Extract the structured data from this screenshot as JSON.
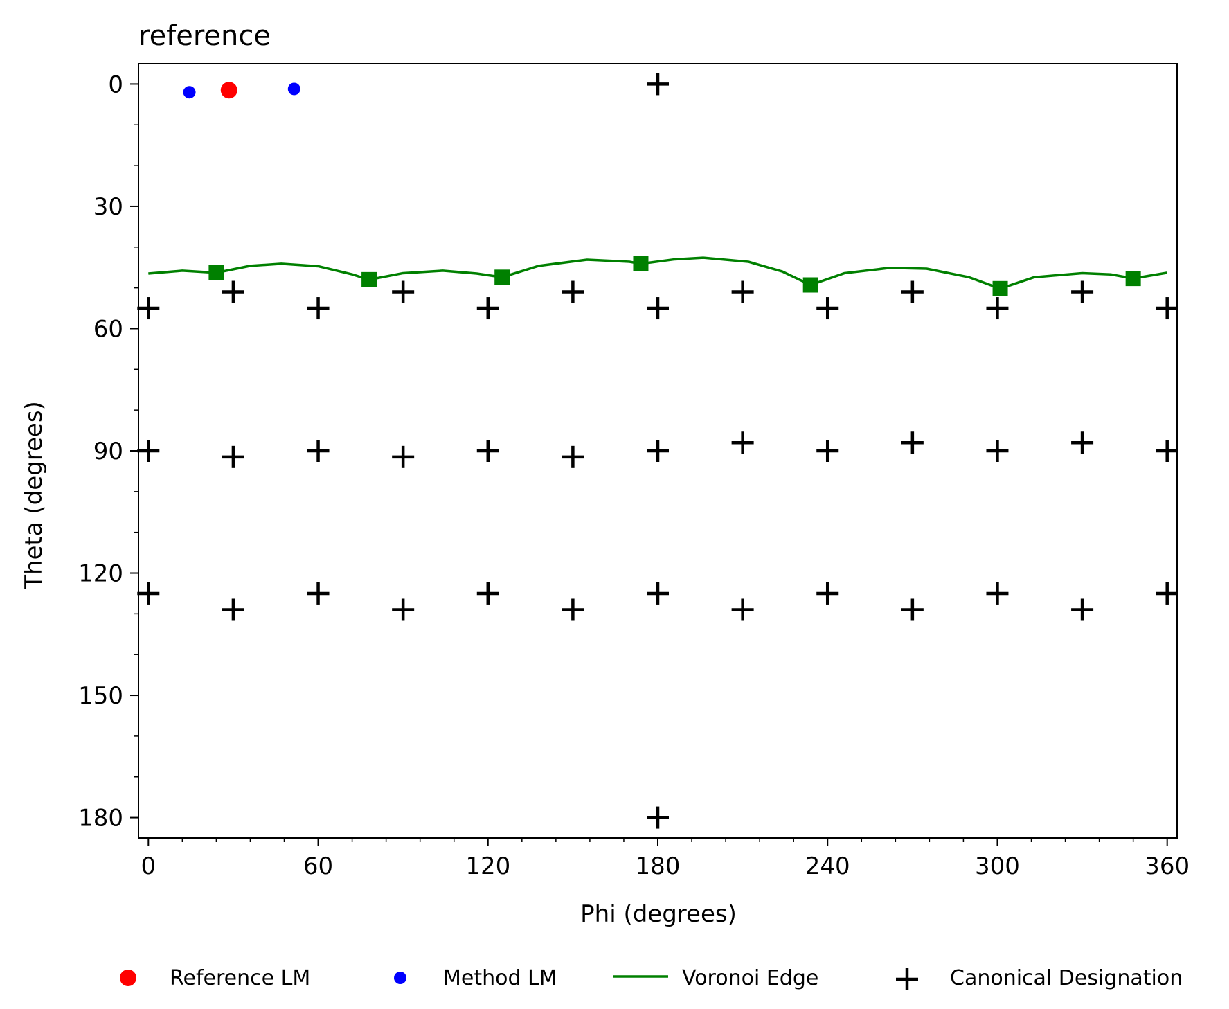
{
  "chart_data": {
    "type": "scatter",
    "title": "reference",
    "xlabel": "Phi (degrees)",
    "ylabel": "Theta (degrees)",
    "xlim": [
      -3.5,
      363.5
    ],
    "ylim": [
      185,
      -5
    ],
    "y_inverted": true,
    "grid": false,
    "xticks": [
      0,
      60,
      120,
      180,
      240,
      300,
      360
    ],
    "xtick_labels": [
      "0",
      "60",
      "120",
      "180",
      "240",
      "300",
      "360"
    ],
    "yticks": [
      0,
      30,
      60,
      90,
      120,
      150,
      180
    ],
    "ytick_labels": [
      "0",
      "30",
      "60",
      "90",
      "120",
      "150",
      "180"
    ],
    "x_minor_step": 12,
    "y_minor_step": 10,
    "legend_position": "bottom-center",
    "series": [
      {
        "name": "Reference LM",
        "kind": "marker",
        "marker": "circle",
        "color": "#ff0000",
        "points": [
          [
            28.5,
            1.5
          ]
        ]
      },
      {
        "name": "Method LM",
        "kind": "marker",
        "marker": "circle",
        "color": "#0000ff",
        "points": [
          [
            14.5,
            2.0
          ],
          [
            51.5,
            1.2
          ]
        ]
      },
      {
        "name": "Voronoi Edge",
        "kind": "line",
        "color": "#008000",
        "line_points": [
          [
            0,
            46.5
          ],
          [
            12,
            45.8
          ],
          [
            24,
            46.3
          ],
          [
            36,
            44.6
          ],
          [
            47,
            44.1
          ],
          [
            60,
            44.7
          ],
          [
            72,
            46.7
          ],
          [
            78,
            48.0
          ],
          [
            90,
            46.4
          ],
          [
            104,
            45.8
          ],
          [
            116,
            46.5
          ],
          [
            125,
            47.4
          ],
          [
            138,
            44.6
          ],
          [
            155,
            43.1
          ],
          [
            170,
            43.6
          ],
          [
            174,
            44.1
          ],
          [
            186,
            43.0
          ],
          [
            196,
            42.6
          ],
          [
            212,
            43.6
          ],
          [
            224,
            46.0
          ],
          [
            234,
            49.3
          ],
          [
            246,
            46.4
          ],
          [
            262,
            45.1
          ],
          [
            275,
            45.3
          ],
          [
            290,
            47.4
          ],
          [
            301,
            50.2
          ],
          [
            313,
            47.4
          ],
          [
            330,
            46.4
          ],
          [
            340,
            46.7
          ],
          [
            348,
            47.7
          ],
          [
            360,
            46.3
          ]
        ],
        "vertex_points": [
          [
            24,
            46.3
          ],
          [
            78,
            48.0
          ],
          [
            125,
            47.4
          ],
          [
            174,
            44.1
          ],
          [
            234,
            49.3
          ],
          [
            301,
            50.2
          ],
          [
            348,
            47.7
          ]
        ]
      },
      {
        "name": "Canonical Designation",
        "kind": "marker",
        "marker": "plus",
        "color": "#000000",
        "points": [
          [
            180,
            0
          ],
          [
            0,
            55
          ],
          [
            60,
            55
          ],
          [
            120,
            55
          ],
          [
            180,
            55
          ],
          [
            240,
            55
          ],
          [
            300,
            55
          ],
          [
            360,
            55
          ],
          [
            30,
            51
          ],
          [
            90,
            51
          ],
          [
            150,
            51
          ],
          [
            210,
            51
          ],
          [
            270,
            51
          ],
          [
            330,
            51
          ],
          [
            0,
            90
          ],
          [
            60,
            90
          ],
          [
            120,
            90
          ],
          [
            180,
            90
          ],
          [
            240,
            90
          ],
          [
            300,
            90
          ],
          [
            360,
            90
          ],
          [
            30,
            91.5
          ],
          [
            90,
            91.5
          ],
          [
            150,
            91.5
          ],
          [
            210,
            88
          ],
          [
            270,
            88
          ],
          [
            330,
            88
          ],
          [
            0,
            125
          ],
          [
            60,
            125
          ],
          [
            120,
            125
          ],
          [
            180,
            125
          ],
          [
            240,
            125
          ],
          [
            300,
            125
          ],
          [
            360,
            125
          ],
          [
            30,
            129
          ],
          [
            90,
            129
          ],
          [
            150,
            129
          ],
          [
            210,
            129
          ],
          [
            270,
            129
          ],
          [
            330,
            129
          ],
          [
            180,
            180
          ]
        ]
      }
    ],
    "legend": [
      {
        "label": "Reference LM",
        "symbol": "circle-large",
        "color": "#ff0000"
      },
      {
        "label": "Method LM",
        "symbol": "circle-small",
        "color": "#0000ff"
      },
      {
        "label": "Voronoi Edge",
        "symbol": "line",
        "color": "#008000"
      },
      {
        "label": "Canonical Designation",
        "symbol": "plus",
        "color": "#000000"
      }
    ]
  }
}
